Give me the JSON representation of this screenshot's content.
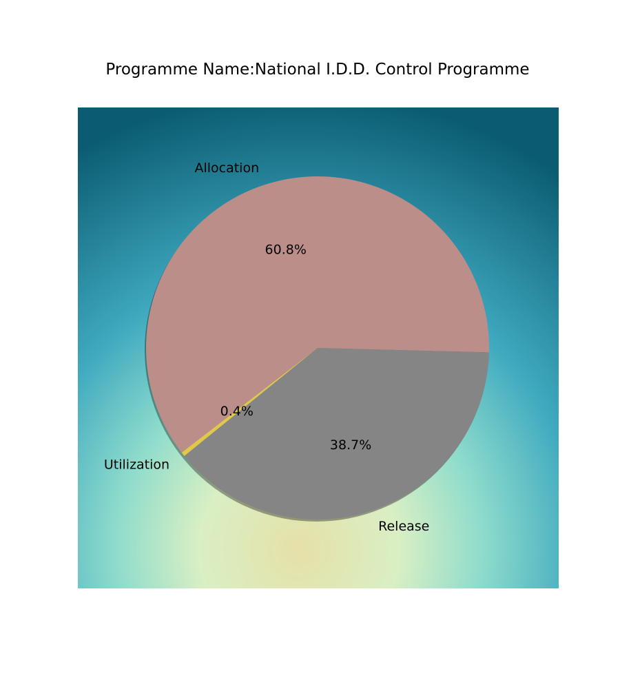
{
  "chart_data": {
    "type": "pie",
    "title": "Programme Name:National I.D.D. Control Programme",
    "slices": [
      {
        "label": "Allocation",
        "value": 60.8,
        "pct_label": "60.8%",
        "color": "#bc8e8a"
      },
      {
        "label": "Utilization",
        "value": 0.4,
        "pct_label": "0.4%",
        "color": "#e0c84a"
      },
      {
        "label": "Release",
        "value": 38.7,
        "pct_label": "38.7%",
        "color": "#858585"
      }
    ],
    "background": {
      "style": "radial-gradient",
      "colors": [
        "#e3e2b0",
        "#9fe0d0",
        "#3fa9bf",
        "#0e6478"
      ]
    }
  }
}
